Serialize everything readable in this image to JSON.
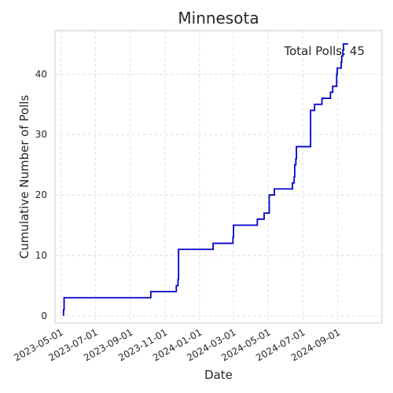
{
  "chart_data": {
    "type": "line",
    "title": "Minnesota",
    "xlabel": "Date",
    "ylabel": "Cumulative Number of Polls",
    "annotation": "Total Polls: 45",
    "grid": true,
    "step": true,
    "line_color": "#0000cc",
    "xlim": [
      "2023-04-21",
      "2024-11-18"
    ],
    "ylim": [
      -1.2,
      47.2
    ],
    "x_ticks": [
      "2023-05-01",
      "2023-07-01",
      "2023-09-01",
      "2023-11-01",
      "2024-01-01",
      "2024-03-01",
      "2024-05-01",
      "2024-07-01",
      "2024-09-01"
    ],
    "y_ticks": [
      0,
      10,
      20,
      30,
      40
    ],
    "series": [
      {
        "x": [
          "2023-05-06",
          "2023-05-07",
          "2023-10-07",
          "2023-11-21",
          "2023-11-24",
          "2023-11-25",
          "2024-01-25",
          "2024-02-29",
          "2024-03-01",
          "2024-04-12",
          "2024-04-24",
          "2024-05-03",
          "2024-05-12",
          "2024-06-13",
          "2024-06-16",
          "2024-06-17",
          "2024-06-19",
          "2024-06-20",
          "2024-07-15",
          "2024-07-22",
          "2024-08-04",
          "2024-08-19",
          "2024-08-20",
          "2024-08-23",
          "2024-08-30",
          "2024-08-31",
          "2024-09-07",
          "2024-09-08",
          "2024-09-10",
          "2024-09-11"
        ],
        "y": [
          1,
          3,
          4,
          5,
          6,
          11,
          12,
          13,
          15,
          16,
          17,
          20,
          21,
          22,
          23,
          25,
          26,
          28,
          34,
          35,
          36,
          37,
          37,
          38,
          40,
          41,
          42,
          43,
          44,
          45
        ]
      }
    ]
  }
}
